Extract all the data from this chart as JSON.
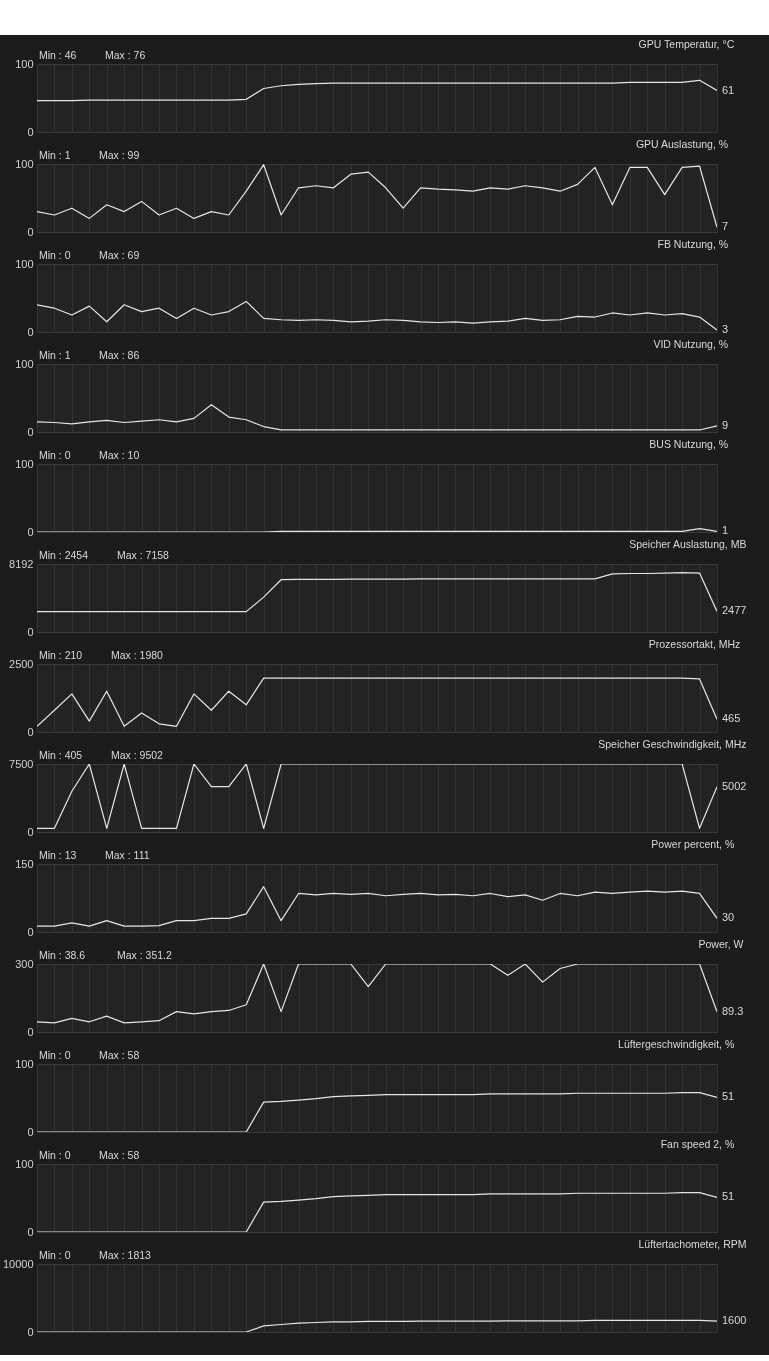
{
  "chart_data": [
    {
      "type": "line",
      "title": "GPU Temperatur, °C",
      "categories": [
        null,
        null,
        null,
        null,
        null,
        null,
        null,
        null,
        null,
        null,
        null,
        null,
        null,
        null,
        null,
        null,
        null,
        null,
        null,
        null,
        null,
        null,
        null,
        null,
        null,
        null,
        null,
        null,
        null,
        null,
        null,
        null,
        null,
        null,
        null,
        null,
        null,
        null,
        null,
        null
      ],
      "values": [
        46,
        46,
        46,
        47,
        47,
        47,
        47,
        47,
        47,
        47,
        47,
        47,
        48,
        64,
        68,
        70,
        71,
        72,
        72,
        72,
        72,
        72,
        72,
        72,
        72,
        72,
        72,
        72,
        72,
        72,
        72,
        72,
        72,
        72,
        73,
        73,
        73,
        73,
        76,
        61
      ],
      "color": "#e6e6e6",
      "ylim": [
        0,
        100
      ],
      "yticks": [
        0,
        100
      ],
      "grid": true,
      "tick_labels": "y",
      "annotations": [
        "Min : 46",
        "Max : 76",
        "61"
      ]
    },
    {
      "type": "line",
      "title": "GPU Auslastung, %",
      "categories": [
        null,
        null,
        null,
        null,
        null,
        null,
        null,
        null,
        null,
        null,
        null,
        null,
        null,
        null,
        null,
        null,
        null,
        null,
        null,
        null,
        null,
        null,
        null,
        null,
        null,
        null,
        null,
        null,
        null,
        null,
        null,
        null,
        null,
        null,
        null,
        null,
        null,
        null,
        null,
        null
      ],
      "values": [
        30,
        25,
        35,
        20,
        40,
        30,
        45,
        25,
        35,
        20,
        30,
        25,
        60,
        99,
        25,
        65,
        68,
        65,
        85,
        88,
        65,
        35,
        65,
        63,
        62,
        60,
        65,
        63,
        68,
        65,
        60,
        70,
        95,
        40,
        95,
        95,
        55,
        95,
        97,
        7
      ],
      "color": "#e6e6e6",
      "ylim": [
        0,
        100
      ],
      "yticks": [
        0,
        100
      ],
      "grid": true,
      "tick_labels": "y",
      "annotations": [
        "Min : 1",
        "Max : 99",
        "7"
      ]
    },
    {
      "type": "line",
      "title": "FB Nutzung, %",
      "categories": [
        null,
        null,
        null,
        null,
        null,
        null,
        null,
        null,
        null,
        null,
        null,
        null,
        null,
        null,
        null,
        null,
        null,
        null,
        null,
        null,
        null,
        null,
        null,
        null,
        null,
        null,
        null,
        null,
        null,
        null,
        null,
        null,
        null,
        null,
        null,
        null,
        null,
        null,
        null,
        null
      ],
      "values": [
        40,
        35,
        25,
        38,
        15,
        40,
        30,
        35,
        20,
        35,
        25,
        30,
        45,
        20,
        18,
        17,
        18,
        17,
        15,
        16,
        18,
        17,
        15,
        14,
        15,
        13,
        15,
        16,
        20,
        17,
        18,
        23,
        22,
        28,
        25,
        28,
        25,
        27,
        22,
        3
      ],
      "color": "#e6e6e6",
      "ylim": [
        0,
        100
      ],
      "yticks": [
        0,
        100
      ],
      "grid": true,
      "tick_labels": "y",
      "annotations": [
        "Min : 0",
        "Max : 69",
        "3"
      ]
    },
    {
      "type": "line",
      "title": "VID Nutzung, %",
      "categories": [
        null,
        null,
        null,
        null,
        null,
        null,
        null,
        null,
        null,
        null,
        null,
        null,
        null,
        null,
        null,
        null,
        null,
        null,
        null,
        null,
        null,
        null,
        null,
        null,
        null,
        null,
        null,
        null,
        null,
        null,
        null,
        null,
        null,
        null,
        null,
        null,
        null,
        null,
        null,
        null
      ],
      "values": [
        15,
        14,
        12,
        15,
        17,
        14,
        16,
        18,
        15,
        20,
        40,
        22,
        18,
        8,
        3,
        3,
        3,
        3,
        3,
        3,
        3,
        3,
        3,
        3,
        3,
        3,
        3,
        3,
        3,
        3,
        3,
        3,
        3,
        3,
        3,
        3,
        3,
        3,
        3,
        9
      ],
      "color": "#e6e6e6",
      "ylim": [
        0,
        100
      ],
      "yticks": [
        0,
        100
      ],
      "grid": true,
      "tick_labels": "y",
      "annotations": [
        "Min : 1",
        "Max : 86",
        "9"
      ]
    },
    {
      "type": "line",
      "title": "BUS Nutzung, %",
      "categories": [
        null,
        null,
        null,
        null,
        null,
        null,
        null,
        null,
        null,
        null,
        null,
        null,
        null,
        null,
        null,
        null,
        null,
        null,
        null,
        null,
        null,
        null,
        null,
        null,
        null,
        null,
        null,
        null,
        null,
        null,
        null,
        null,
        null,
        null,
        null,
        null,
        null,
        null,
        null,
        null
      ],
      "values": [
        0,
        0,
        0,
        0,
        0,
        0,
        0,
        0,
        0,
        0,
        0,
        0,
        0,
        0,
        1,
        1,
        1,
        1,
        1,
        1,
        1,
        1,
        1,
        1,
        1,
        1,
        1,
        1,
        1,
        1,
        1,
        1,
        1,
        1,
        1,
        1,
        1,
        1,
        5,
        1
      ],
      "color": "#e6e6e6",
      "ylim": [
        0,
        100
      ],
      "yticks": [
        0,
        100
      ],
      "grid": true,
      "tick_labels": "y",
      "annotations": [
        "Min : 0",
        "Max : 10",
        "1"
      ]
    },
    {
      "type": "line",
      "title": "Speicher Auslastung, MB",
      "categories": [
        null,
        null,
        null,
        null,
        null,
        null,
        null,
        null,
        null,
        null,
        null,
        null,
        null,
        null,
        null,
        null,
        null,
        null,
        null,
        null,
        null,
        null,
        null,
        null,
        null,
        null,
        null,
        null,
        null,
        null,
        null,
        null,
        null,
        null,
        null,
        null,
        null,
        null,
        null,
        null
      ],
      "values": [
        2454,
        2454,
        2454,
        2454,
        2454,
        2454,
        2454,
        2454,
        2454,
        2454,
        2454,
        2454,
        2454,
        4200,
        6300,
        6350,
        6350,
        6350,
        6380,
        6380,
        6380,
        6380,
        6400,
        6400,
        6400,
        6400,
        6400,
        6400,
        6400,
        6400,
        6400,
        6400,
        6400,
        7000,
        7050,
        7050,
        7100,
        7158,
        7100,
        2477
      ],
      "color": "#e6e6e6",
      "ylim": [
        0,
        8192
      ],
      "yticks": [
        0,
        8192
      ],
      "grid": true,
      "tick_labels": "y",
      "annotations": [
        "Min : 2454",
        "Max : 7158",
        "2477"
      ]
    },
    {
      "type": "line",
      "title": "Prozessortakt, MHz",
      "categories": [
        null,
        null,
        null,
        null,
        null,
        null,
        null,
        null,
        null,
        null,
        null,
        null,
        null,
        null,
        null,
        null,
        null,
        null,
        null,
        null,
        null,
        null,
        null,
        null,
        null,
        null,
        null,
        null,
        null,
        null,
        null,
        null,
        null,
        null,
        null,
        null,
        null,
        null,
        null,
        null
      ],
      "values": [
        210,
        800,
        1400,
        400,
        1500,
        210,
        700,
        300,
        210,
        1400,
        800,
        1500,
        1000,
        1980,
        1980,
        1980,
        1980,
        1980,
        1980,
        1980,
        1980,
        1980,
        1980,
        1980,
        1980,
        1980,
        1980,
        1980,
        1980,
        1980,
        1980,
        1980,
        1980,
        1980,
        1980,
        1980,
        1980,
        1980,
        1950,
        465
      ],
      "color": "#e6e6e6",
      "ylim": [
        0,
        2500
      ],
      "yticks": [
        0,
        2500
      ],
      "grid": true,
      "tick_labels": "y",
      "annotations": [
        "Min : 210",
        "Max : 1980",
        "465"
      ]
    },
    {
      "type": "line",
      "title": "Speicher Geschwindigkeit, MHz",
      "categories": [
        null,
        null,
        null,
        null,
        null,
        null,
        null,
        null,
        null,
        null,
        null,
        null,
        null,
        null,
        null,
        null,
        null,
        null,
        null,
        null,
        null,
        null,
        null,
        null,
        null,
        null,
        null,
        null,
        null,
        null,
        null,
        null,
        null,
        null,
        null,
        null,
        null,
        null,
        null,
        null
      ],
      "values": [
        405,
        405,
        4500,
        7500,
        405,
        7500,
        405,
        405,
        405,
        7500,
        5000,
        5000,
        7500,
        405,
        7500,
        7500,
        7500,
        7500,
        7500,
        7500,
        7500,
        7500,
        7500,
        7500,
        7500,
        7500,
        7500,
        7500,
        7500,
        7500,
        7500,
        7500,
        7500,
        7500,
        7500,
        7500,
        7500,
        7500,
        405,
        5002
      ],
      "color": "#e6e6e6",
      "ylim": [
        0,
        7500
      ],
      "yticks": [
        0,
        7500
      ],
      "grid": true,
      "tick_labels": "y",
      "annotations": [
        "Min : 405",
        "Max : 9502",
        "5002"
      ]
    },
    {
      "type": "line",
      "title": "Power percent, %",
      "categories": [
        null,
        null,
        null,
        null,
        null,
        null,
        null,
        null,
        null,
        null,
        null,
        null,
        null,
        null,
        null,
        null,
        null,
        null,
        null,
        null,
        null,
        null,
        null,
        null,
        null,
        null,
        null,
        null,
        null,
        null,
        null,
        null,
        null,
        null,
        null,
        null,
        null,
        null,
        null,
        null
      ],
      "values": [
        13,
        13,
        20,
        13,
        25,
        13,
        13,
        14,
        25,
        25,
        30,
        30,
        40,
        100,
        25,
        85,
        82,
        85,
        83,
        85,
        80,
        83,
        85,
        82,
        83,
        80,
        85,
        78,
        82,
        70,
        85,
        80,
        88,
        85,
        88,
        90,
        88,
        90,
        85,
        30
      ],
      "color": "#e6e6e6",
      "ylim": [
        0,
        150
      ],
      "yticks": [
        0,
        150
      ],
      "grid": true,
      "tick_labels": "y",
      "annotations": [
        "Min : 13",
        "Max : 111",
        "30"
      ]
    },
    {
      "type": "line",
      "title": "Power, W",
      "categories": [
        null,
        null,
        null,
        null,
        null,
        null,
        null,
        null,
        null,
        null,
        null,
        null,
        null,
        null,
        null,
        null,
        null,
        null,
        null,
        null,
        null,
        null,
        null,
        null,
        null,
        null,
        null,
        null,
        null,
        null,
        null,
        null,
        null,
        null,
        null,
        null,
        null,
        null,
        null,
        null
      ],
      "values": [
        45,
        40,
        60,
        45,
        70,
        40,
        45,
        50,
        90,
        80,
        90,
        95,
        120,
        300,
        90,
        300,
        300,
        300,
        300,
        200,
        300,
        300,
        300,
        300,
        300,
        300,
        300,
        250,
        300,
        220,
        280,
        300,
        300,
        300,
        300,
        300,
        300,
        300,
        300,
        89.3
      ],
      "color": "#e6e6e6",
      "ylim": [
        0,
        300
      ],
      "yticks": [
        0,
        300
      ],
      "grid": true,
      "tick_labels": "y",
      "annotations": [
        "Min : 38.6",
        "Max : 351.2",
        "89.3"
      ]
    },
    {
      "type": "line",
      "title": "Lüftergeschwindigkeit, %",
      "categories": [
        null,
        null,
        null,
        null,
        null,
        null,
        null,
        null,
        null,
        null,
        null,
        null,
        null,
        null,
        null,
        null,
        null,
        null,
        null,
        null,
        null,
        null,
        null,
        null,
        null,
        null,
        null,
        null,
        null,
        null,
        null,
        null,
        null,
        null,
        null,
        null,
        null,
        null,
        null,
        null
      ],
      "values": [
        0,
        0,
        0,
        0,
        0,
        0,
        0,
        0,
        0,
        0,
        0,
        0,
        0,
        44,
        45,
        47,
        49,
        52,
        53,
        54,
        55,
        55,
        55,
        55,
        55,
        55,
        56,
        56,
        56,
        56,
        56,
        57,
        57,
        57,
        57,
        57,
        57,
        58,
        58,
        51
      ],
      "color": "#e6e6e6",
      "ylim": [
        0,
        100
      ],
      "yticks": [
        0,
        100
      ],
      "grid": true,
      "tick_labels": "y",
      "annotations": [
        "Min : 0",
        "Max : 58",
        "51"
      ]
    },
    {
      "type": "line",
      "title": "Fan speed 2, %",
      "categories": [
        null,
        null,
        null,
        null,
        null,
        null,
        null,
        null,
        null,
        null,
        null,
        null,
        null,
        null,
        null,
        null,
        null,
        null,
        null,
        null,
        null,
        null,
        null,
        null,
        null,
        null,
        null,
        null,
        null,
        null,
        null,
        null,
        null,
        null,
        null,
        null,
        null,
        null,
        null,
        null
      ],
      "values": [
        0,
        0,
        0,
        0,
        0,
        0,
        0,
        0,
        0,
        0,
        0,
        0,
        0,
        44,
        45,
        47,
        49,
        52,
        53,
        54,
        55,
        55,
        55,
        55,
        55,
        55,
        56,
        56,
        56,
        56,
        56,
        57,
        57,
        57,
        57,
        57,
        57,
        58,
        58,
        51
      ],
      "color": "#e6e6e6",
      "ylim": [
        0,
        100
      ],
      "yticks": [
        0,
        100
      ],
      "grid": true,
      "tick_labels": "y",
      "annotations": [
        "Min : 0",
        "Max : 58",
        "51"
      ]
    },
    {
      "type": "line",
      "title": "Lüftertachometer, RPM",
      "categories": [
        null,
        null,
        null,
        null,
        null,
        null,
        null,
        null,
        null,
        null,
        null,
        null,
        null,
        null,
        null,
        null,
        null,
        null,
        null,
        null,
        null,
        null,
        null,
        null,
        null,
        null,
        null,
        null,
        null,
        null,
        null,
        null,
        null,
        null,
        null,
        null,
        null,
        null,
        null,
        null
      ],
      "values": [
        0,
        0,
        0,
        0,
        0,
        0,
        0,
        0,
        0,
        0,
        0,
        0,
        0,
        900,
        1100,
        1300,
        1400,
        1500,
        1500,
        1550,
        1550,
        1550,
        1600,
        1600,
        1600,
        1600,
        1600,
        1650,
        1650,
        1650,
        1650,
        1650,
        1700,
        1700,
        1700,
        1700,
        1700,
        1700,
        1700,
        1600
      ],
      "color": "#e6e6e6",
      "ylim": [
        0,
        10000
      ],
      "yticks": [
        0,
        10000
      ],
      "grid": true,
      "tick_labels": "y",
      "annotations": [
        "Min : 0",
        "Max : 1813",
        "1600"
      ]
    }
  ]
}
